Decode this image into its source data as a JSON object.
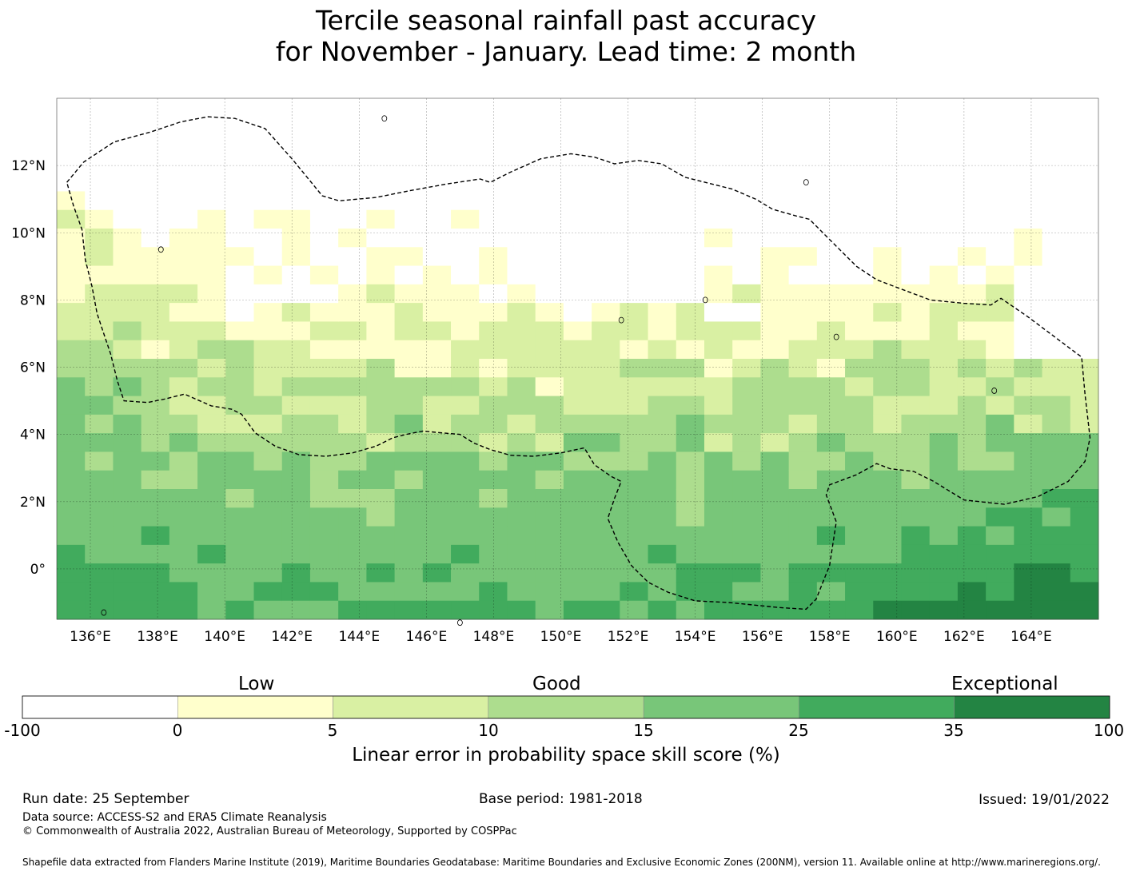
{
  "title": {
    "line1": "Tercile seasonal rainfall past accuracy",
    "line2": "for November - January. Lead time: 2 month"
  },
  "map": {
    "lon_labels": [
      "136°E",
      "138°E",
      "140°E",
      "142°E",
      "144°E",
      "146°E",
      "148°E",
      "150°E",
      "152°E",
      "154°E",
      "156°E",
      "158°E",
      "160°E",
      "162°E",
      "164°E"
    ],
    "lat_labels": [
      "12°N",
      "10°N",
      "8°N",
      "6°N",
      "4°N",
      "2°N",
      "0°"
    ],
    "lon_range": [
      135.0,
      166.0
    ],
    "lat_range": [
      -1.5,
      14.0
    ],
    "eez_boundary": [
      [
        135.3,
        11.5
      ],
      [
        135.8,
        12.1
      ],
      [
        136.7,
        12.7
      ],
      [
        137.8,
        13.0
      ],
      [
        138.7,
        13.3
      ],
      [
        139.5,
        13.45
      ],
      [
        140.3,
        13.4
      ],
      [
        141.2,
        13.1
      ],
      [
        142.0,
        12.2
      ],
      [
        142.9,
        11.1
      ],
      [
        143.4,
        10.95
      ],
      [
        144.5,
        11.05
      ],
      [
        145.5,
        11.25
      ],
      [
        146.6,
        11.45
      ],
      [
        147.6,
        11.6
      ],
      [
        147.9,
        11.5
      ],
      [
        148.5,
        11.8
      ],
      [
        149.4,
        12.2
      ],
      [
        150.3,
        12.35
      ],
      [
        151.0,
        12.25
      ],
      [
        151.6,
        12.05
      ],
      [
        152.3,
        12.15
      ],
      [
        153.0,
        12.05
      ],
      [
        153.7,
        11.65
      ],
      [
        154.3,
        11.5
      ],
      [
        155.1,
        11.3
      ],
      [
        155.8,
        11.0
      ],
      [
        156.3,
        10.7
      ],
      [
        157.0,
        10.5
      ],
      [
        157.4,
        10.4
      ],
      [
        158.0,
        9.8
      ],
      [
        158.8,
        9.0
      ],
      [
        159.4,
        8.6
      ],
      [
        160.2,
        8.3
      ],
      [
        161.0,
        8.0
      ],
      [
        162.0,
        7.9
      ],
      [
        162.8,
        7.85
      ],
      [
        163.1,
        8.05
      ],
      [
        163.9,
        7.5
      ],
      [
        164.7,
        6.9
      ],
      [
        165.5,
        6.3
      ],
      [
        165.6,
        5.2
      ],
      [
        165.75,
        3.9
      ],
      [
        165.6,
        3.2
      ],
      [
        165.1,
        2.6
      ],
      [
        164.2,
        2.15
      ],
      [
        163.2,
        1.92
      ],
      [
        162.0,
        2.05
      ],
      [
        161.1,
        2.6
      ],
      [
        160.5,
        2.9
      ],
      [
        159.8,
        2.98
      ],
      [
        159.4,
        3.13
      ],
      [
        158.8,
        2.8
      ],
      [
        158.0,
        2.5
      ],
      [
        157.9,
        2.2
      ],
      [
        158.2,
        1.4
      ],
      [
        158.0,
        0.1
      ],
      [
        157.6,
        -0.9
      ],
      [
        157.3,
        -1.2
      ],
      [
        156.5,
        -1.15
      ],
      [
        155.0,
        -1.0
      ],
      [
        154.0,
        -0.95
      ],
      [
        153.2,
        -0.7
      ],
      [
        152.6,
        -0.4
      ],
      [
        152.1,
        0.1
      ],
      [
        151.7,
        0.8
      ],
      [
        151.4,
        1.5
      ],
      [
        151.6,
        2.1
      ],
      [
        151.8,
        2.6
      ],
      [
        151.5,
        2.75
      ],
      [
        151.0,
        3.1
      ],
      [
        150.7,
        3.6
      ],
      [
        150.0,
        3.45
      ],
      [
        149.2,
        3.35
      ],
      [
        148.5,
        3.38
      ],
      [
        147.9,
        3.55
      ],
      [
        147.4,
        3.75
      ],
      [
        147.0,
        4.0
      ],
      [
        146.4,
        4.05
      ],
      [
        145.9,
        4.1
      ],
      [
        145.4,
        4.0
      ],
      [
        145.0,
        3.9
      ],
      [
        144.5,
        3.65
      ],
      [
        143.8,
        3.45
      ],
      [
        143.0,
        3.35
      ],
      [
        142.2,
        3.4
      ],
      [
        141.5,
        3.65
      ],
      [
        140.9,
        4.05
      ],
      [
        140.5,
        4.6
      ],
      [
        140.2,
        4.75
      ],
      [
        139.6,
        4.85
      ],
      [
        138.8,
        5.2
      ],
      [
        138.2,
        5.05
      ],
      [
        137.7,
        4.95
      ],
      [
        137.0,
        5.0
      ],
      [
        136.8,
        5.6
      ],
      [
        136.6,
        6.4
      ],
      [
        136.4,
        7.0
      ],
      [
        136.2,
        7.6
      ],
      [
        136.05,
        8.4
      ],
      [
        135.85,
        9.2
      ],
      [
        135.75,
        10.1
      ],
      [
        135.5,
        10.8
      ],
      [
        135.3,
        11.5
      ]
    ]
  },
  "colorbar": {
    "category_labels": [
      "Low",
      "Good",
      "Exceptional"
    ],
    "tick_labels": [
      "-100",
      "0",
      "5",
      "10",
      "15",
      "25",
      "35",
      "100"
    ],
    "colors": [
      "#ffffff",
      "#ffffcc",
      "#d9f0a3",
      "#addd8e",
      "#78c679",
      "#41ab5d",
      "#238443"
    ],
    "title": "Linear error in probability space skill score (%)"
  },
  "footer": {
    "run_date": "Run date: 25 September",
    "base_period": "Base period: 1981-2018",
    "issued": "Issued: 19/01/2022",
    "data_source": "Data source: ACCESS-S2 and ERA5 Climate Reanalysis",
    "copyright": "© Commonwealth of Australia 2022, Australian Bureau of Meteorology, Supported by COSPPac",
    "shapefile": "Shapefile data extracted from Flanders Marine Institute (2019), Maritime Boundaries Geodatabase: Maritime Boundaries and Exclusive Economic Zones (200NM), version 11. Available online at http://www.marineregions.org/."
  }
}
